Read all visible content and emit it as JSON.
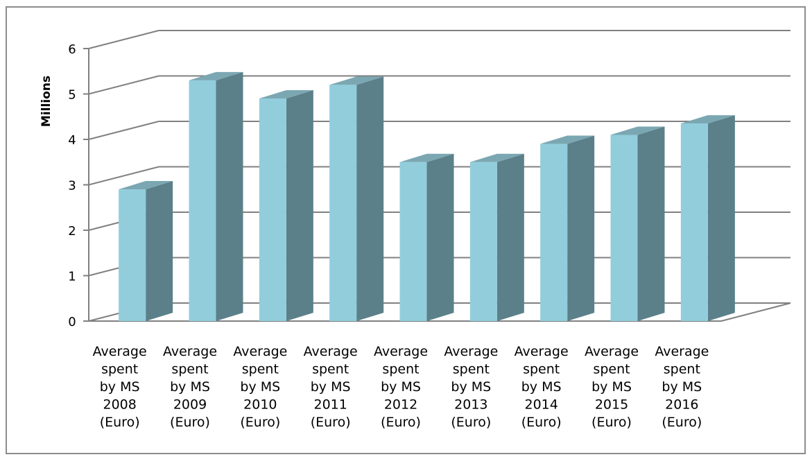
{
  "chart_data": {
    "type": "bar",
    "style": "3d-column",
    "title": "",
    "ylabel": "Millions",
    "xlabel": "",
    "ylim": [
      0,
      6
    ],
    "yticks": [
      "0",
      "1",
      "2",
      "3",
      "4",
      "5",
      "6"
    ],
    "grid": true,
    "legend": "none",
    "categories": [
      [
        "Average",
        "spent",
        "by MS",
        "2008",
        "(Euro)"
      ],
      [
        "Average",
        "spent",
        "by MS",
        "2009",
        "(Euro)"
      ],
      [
        "Average",
        "spent",
        "by MS",
        "2010",
        "(Euro)"
      ],
      [
        "Average",
        "spent",
        "by MS",
        "2011",
        "(Euro)"
      ],
      [
        "Average",
        "spent",
        "by MS",
        "2012",
        "(Euro)"
      ],
      [
        "Average",
        "spent",
        "by MS",
        "2013",
        "(Euro)"
      ],
      [
        "Average",
        "spent",
        "by MS",
        "2014",
        "(Euro)"
      ],
      [
        "Average",
        "spent",
        "by MS",
        "2015",
        "(Euro)"
      ],
      [
        "Average",
        "spent",
        "by MS",
        "2016",
        "(Euro)"
      ]
    ],
    "values": [
      2.9,
      5.3,
      4.9,
      5.2,
      3.5,
      3.5,
      3.9,
      4.1,
      4.35
    ],
    "colors": {
      "front": "#92cddc",
      "side": "#5b8089",
      "top": "#7ba7b2",
      "grid": "#808080"
    }
  }
}
